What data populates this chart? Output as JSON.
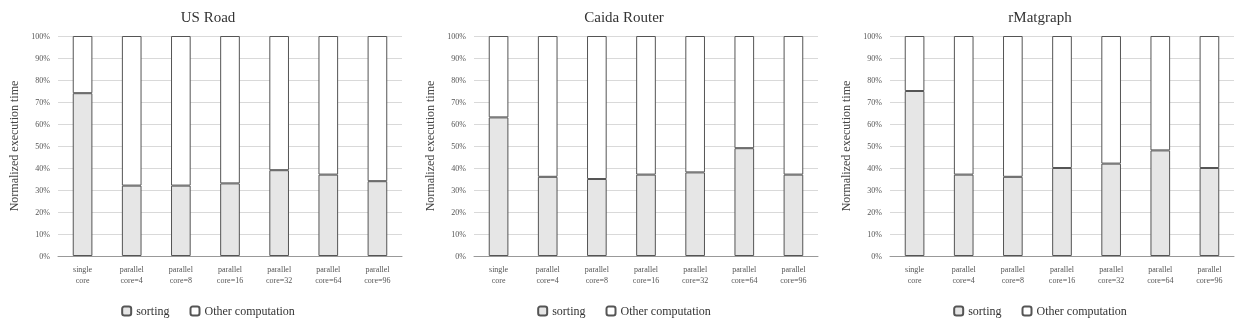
{
  "chart_data": [
    {
      "type": "bar",
      "title": "US Road",
      "ylabel": "Normalized execution time",
      "stacked": true,
      "grid": "y",
      "legend": "bottom",
      "categories": [
        "single\ncore",
        "parallel\ncore=4",
        "parallel\ncore=8",
        "parallel\ncore=16",
        "parallel\ncore=32",
        "parallel\ncore=64",
        "parallel\ncore=96"
      ],
      "series": [
        {
          "name": "sorting",
          "color": "#e6e6e6",
          "values": [
            74,
            32,
            32,
            33,
            39,
            37,
            34
          ]
        },
        {
          "name": "Other computation",
          "color": "#ffffff",
          "values": [
            26,
            68,
            68,
            67,
            61,
            63,
            66
          ]
        }
      ],
      "ylim": [
        0,
        100
      ],
      "yticks": [
        {
          "value": 0,
          "label": "0%"
        },
        {
          "value": 10,
          "label": "10%"
        },
        {
          "value": 20,
          "label": "20%"
        },
        {
          "value": 30,
          "label": "30%"
        },
        {
          "value": 40,
          "label": "40%"
        },
        {
          "value": 50,
          "label": "50%"
        },
        {
          "value": 60,
          "label": "60%"
        },
        {
          "value": 70,
          "label": "70%"
        },
        {
          "value": 80,
          "label": "80%"
        },
        {
          "value": 90,
          "label": "90%"
        },
        {
          "value": 100,
          "label": "100%"
        }
      ]
    },
    {
      "type": "bar",
      "title": "Caida Router",
      "ylabel": "Normalized execution time",
      "stacked": true,
      "grid": "y",
      "legend": "bottom",
      "categories": [
        "single\ncore",
        "parallel\ncore=4",
        "parallel\ncore=8",
        "parallel\ncore=16",
        "parallel\ncore=32",
        "parallel\ncore=64",
        "parallel\ncore=96"
      ],
      "series": [
        {
          "name": "sorting",
          "color": "#e6e6e6",
          "values": [
            63,
            36,
            35,
            37,
            38,
            49,
            37
          ]
        },
        {
          "name": "Other computation",
          "color": "#ffffff",
          "values": [
            37,
            64,
            65,
            63,
            62,
            51,
            63
          ]
        }
      ],
      "ylim": [
        0,
        100
      ],
      "yticks": [
        {
          "value": 0,
          "label": "0%"
        },
        {
          "value": 10,
          "label": "10%"
        },
        {
          "value": 20,
          "label": "20%"
        },
        {
          "value": 30,
          "label": "30%"
        },
        {
          "value": 40,
          "label": "40%"
        },
        {
          "value": 50,
          "label": "50%"
        },
        {
          "value": 60,
          "label": "60%"
        },
        {
          "value": 70,
          "label": "70%"
        },
        {
          "value": 80,
          "label": "80%"
        },
        {
          "value": 90,
          "label": "90%"
        },
        {
          "value": 100,
          "label": "100%"
        }
      ]
    },
    {
      "type": "bar",
      "title": "rMatgraph",
      "ylabel": "Normalized execution time",
      "stacked": true,
      "grid": "y",
      "legend": "bottom",
      "categories": [
        "single\ncore",
        "parallel\ncore=4",
        "parallel\ncore=8",
        "parallel\ncore=16",
        "parallel\ncore=32",
        "parallel\ncore=64",
        "parallel\ncore=96"
      ],
      "series": [
        {
          "name": "sorting",
          "color": "#e6e6e6",
          "values": [
            75,
            37,
            36,
            40,
            42,
            48,
            40
          ]
        },
        {
          "name": "Other computation",
          "color": "#ffffff",
          "values": [
            25,
            63,
            64,
            60,
            58,
            52,
            60
          ]
        }
      ],
      "ylim": [
        0,
        100
      ],
      "yticks": [
        {
          "value": 0,
          "label": "0%"
        },
        {
          "value": 10,
          "label": "10%"
        },
        {
          "value": 20,
          "label": "20%"
        },
        {
          "value": 30,
          "label": "30%"
        },
        {
          "value": 40,
          "label": "40%"
        },
        {
          "value": 50,
          "label": "50%"
        },
        {
          "value": 60,
          "label": "60%"
        },
        {
          "value": 70,
          "label": "70%"
        },
        {
          "value": 80,
          "label": "80%"
        },
        {
          "value": 90,
          "label": "90%"
        },
        {
          "value": 100,
          "label": "100%"
        }
      ]
    }
  ]
}
